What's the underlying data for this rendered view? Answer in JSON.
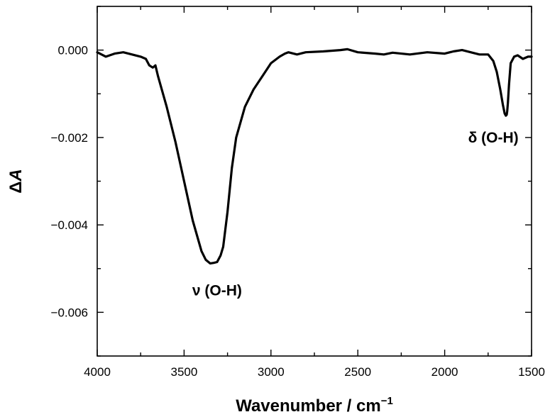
{
  "chart_data": {
    "type": "line",
    "xlabel": "Wavenumber / cm",
    "xlabel_sup": "−1",
    "ylabel_delta": "Δ",
    "ylabel_var": "A",
    "xlim": [
      4000,
      1500
    ],
    "ylim": [
      -0.007,
      0.001
    ],
    "x_reversed": true,
    "x_ticks": [
      4000,
      3500,
      3000,
      2500,
      2000,
      1500
    ],
    "x_tick_labels": [
      "4000",
      "3500",
      "3000",
      "2500",
      "2000",
      "1500"
    ],
    "y_ticks": [
      0.0,
      -0.002,
      -0.004,
      -0.006
    ],
    "y_tick_labels": [
      "0.000",
      "−0.002",
      "−0.004",
      "−0.006"
    ],
    "grid": false,
    "series": [
      {
        "x": [
          4000,
          3950,
          3900,
          3850,
          3800,
          3750,
          3720,
          3700,
          3680,
          3665,
          3650,
          3600,
          3550,
          3500,
          3450,
          3400,
          3375,
          3350,
          3330,
          3310,
          3290,
          3275,
          3250,
          3225,
          3200,
          3150,
          3100,
          3050,
          3000,
          2950,
          2920,
          2900,
          2850,
          2800,
          2700,
          2600,
          2560,
          2500,
          2400,
          2350,
          2300,
          2200,
          2100,
          2000,
          1950,
          1900,
          1850,
          1800,
          1750,
          1720,
          1700,
          1680,
          1665,
          1655,
          1648,
          1643,
          1640,
          1636,
          1630,
          1620,
          1600,
          1580,
          1550,
          1520,
          1500
        ],
        "y": [
          -5e-05,
          -0.00015,
          -8e-05,
          -5e-05,
          -0.0001,
          -0.00015,
          -0.0002,
          -0.00035,
          -0.0004,
          -0.00035,
          -0.0006,
          -0.0013,
          -0.0021,
          -0.003,
          -0.0039,
          -0.0046,
          -0.0048,
          -0.00488,
          -0.00487,
          -0.00485,
          -0.0047,
          -0.0045,
          -0.0037,
          -0.0027,
          -0.002,
          -0.0013,
          -0.0009,
          -0.0006,
          -0.0003,
          -0.00015,
          -8e-05,
          -5e-05,
          -0.0001,
          -5e-05,
          -3e-05,
          0.0,
          2e-05,
          -5e-05,
          -8e-05,
          -0.0001,
          -6e-05,
          -0.0001,
          -5e-05,
          -8e-05,
          -3e-05,
          0.0,
          -5e-05,
          -0.0001,
          -0.0001,
          -0.00025,
          -0.0005,
          -0.0009,
          -0.00125,
          -0.00145,
          -0.0015,
          -0.00148,
          -0.0014,
          -0.0012,
          -0.0008,
          -0.0003,
          -0.00015,
          -0.00012,
          -0.0002,
          -0.00015,
          -0.00015
        ]
      }
    ],
    "annotations": [
      {
        "label_text": "ν (O-H)",
        "x": 3310,
        "y": -0.0055
      },
      {
        "label_text": "δ (O-H)",
        "x": 1720,
        "y": -0.002
      }
    ]
  }
}
